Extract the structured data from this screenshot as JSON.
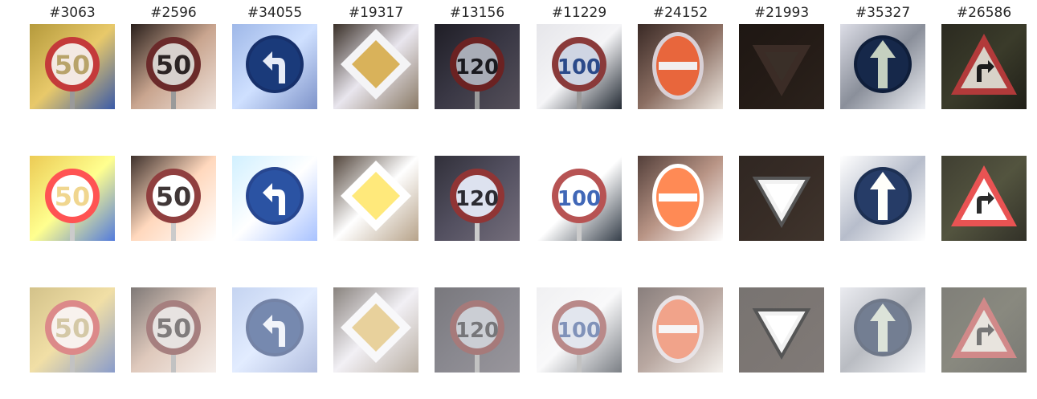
{
  "columns": [
    {
      "id": "#3063",
      "sign": "speed",
      "text": "50",
      "bg": [
        "#b59a3c",
        "#e8c96a",
        "#3a5aa8"
      ],
      "ring": "#c43a3a",
      "face": "#f3e9e3",
      "ink": "#b8a36a"
    },
    {
      "id": "#2596",
      "sign": "speed",
      "text": "50",
      "bg": [
        "#2a201c",
        "#c9a58f",
        "#efe3dc"
      ],
      "ring": "#6b2a2a",
      "face": "#d7d1cd",
      "ink": "#2b2424"
    },
    {
      "id": "#34055",
      "sign": "blue-left",
      "text": "",
      "bg": [
        "#9fb8e8",
        "#cfe0ff",
        "#7e93c9"
      ],
      "ring": "#17306b",
      "face": "#1a3a7a",
      "ink": "#e7ecf7"
    },
    {
      "id": "#19317",
      "sign": "diamond",
      "text": "",
      "bg": [
        "#3a3028",
        "#e9e6ee",
        "#8a7a66"
      ],
      "ring": "#f4f4f6",
      "face": "#d9b25a",
      "ink": "#6a5a3a"
    },
    {
      "id": "#13156",
      "sign": "speed",
      "text": "120",
      "bg": [
        "#1f1e26",
        "#3a3845",
        "#55505a"
      ],
      "ring": "#6b2222",
      "face": "#a9adb7",
      "ink": "#1a1a1f"
    },
    {
      "id": "#11229",
      "sign": "speed",
      "text": "100",
      "bg": [
        "#e6e6ea",
        "#f5f5f7",
        "#232a33"
      ],
      "ring": "#8a3a3a",
      "face": "#cfd5e3",
      "ink": "#2b4a8a"
    },
    {
      "id": "#24152",
      "sign": "noentry",
      "text": "",
      "bg": [
        "#3a2a26",
        "#8b6e62",
        "#efe9e2"
      ],
      "ring": "#d8d0d6",
      "face": "#e8663c",
      "ink": "#f2eef0"
    },
    {
      "id": "#21993",
      "sign": "yield",
      "text": "",
      "bg": [
        "#1e1713",
        "#241b16",
        "#2b221c"
      ],
      "ring": "#3b2c26",
      "face": "#3a2f28",
      "ink": "#2a211c"
    },
    {
      "id": "#35327",
      "sign": "blue-up",
      "text": "",
      "bg": [
        "#dcdde6",
        "#8a8f9a",
        "#eef0f5"
      ],
      "ring": "#0f1e3a",
      "face": "#16284a",
      "ink": "#c5d0c0"
    },
    {
      "id": "#26586",
      "sign": "warn-right",
      "text": "",
      "bg": [
        "#2b2a20",
        "#3a3b2a",
        "#201f18"
      ],
      "ring": "#b23a3a",
      "face": "#d8d2c8",
      "ink": "#1b1b1b"
    }
  ],
  "rows": [
    {
      "variant": "original"
    },
    {
      "variant": "equalized"
    },
    {
      "variant": "adjusted"
    }
  ]
}
